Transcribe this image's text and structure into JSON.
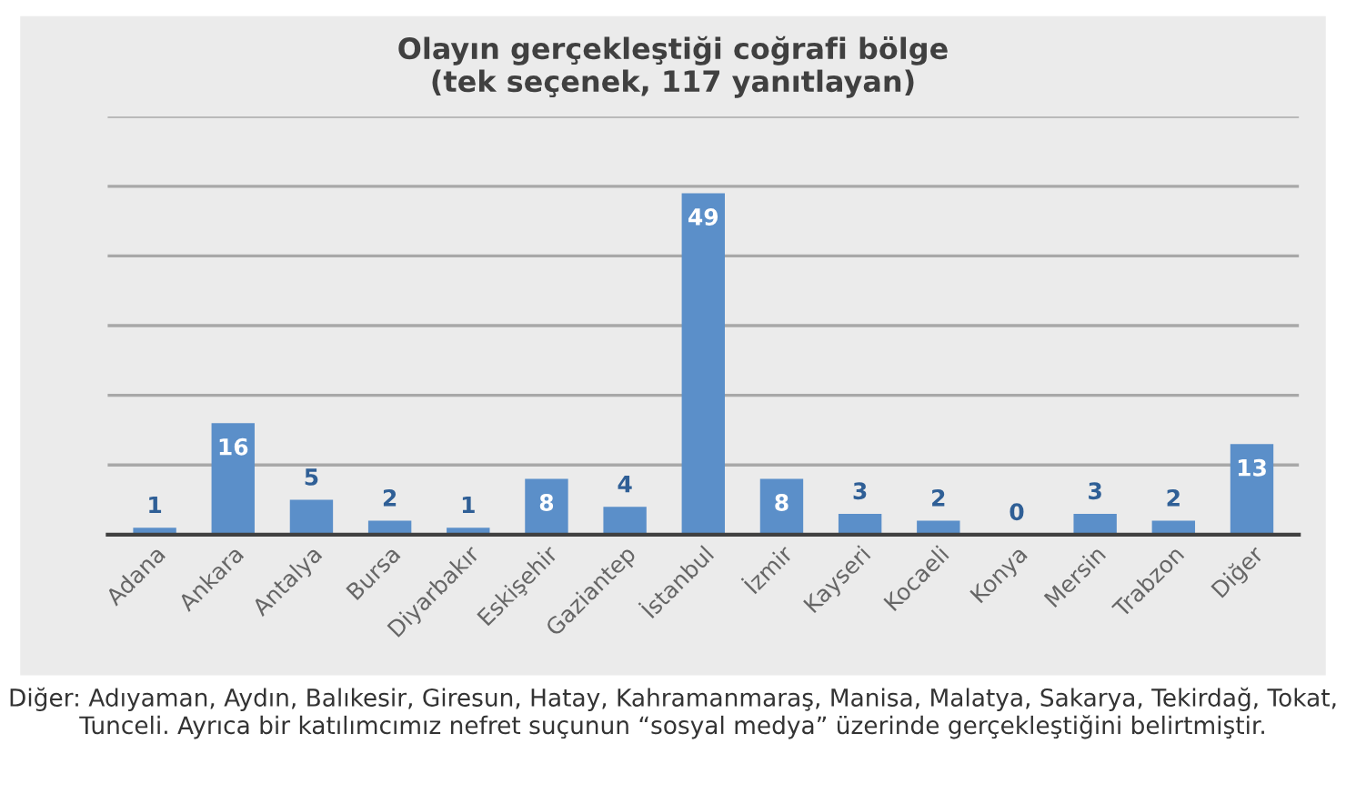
{
  "chart_data": {
    "type": "bar",
    "title": "Olayın gerçekleştiği coğrafi bölge\n(tek seçenek, 117 yanıtlayan)",
    "categories": [
      "Adana",
      "Ankara",
      "Antalya",
      "Bursa",
      "Diyarbakır",
      "Eskişehir",
      "Gaziantep",
      "İstanbul",
      "İzmir",
      "Kayseri",
      "Kocaeli",
      "Konya",
      "Mersin",
      "Trabzon",
      "Diğer"
    ],
    "values": [
      1,
      16,
      5,
      2,
      1,
      8,
      4,
      49,
      8,
      3,
      2,
      0,
      3,
      2,
      13
    ],
    "color": "#5b8fc9",
    "data_labels": true,
    "ylim": [
      0,
      60
    ],
    "yticks": [
      {
        "value": 0,
        "label": null
      },
      {
        "value": 10,
        "label": null
      },
      {
        "value": 20,
        "label": null
      },
      {
        "value": 30,
        "label": null
      },
      {
        "value": 40,
        "label": null
      },
      {
        "value": 50,
        "label": null
      },
      {
        "value": 60,
        "label": null
      }
    ],
    "grid": "y",
    "annotations": [
      "Diğer: Adıyaman, Aydın, Balıkesir, Giresun, Hatay, Kahramanmaraş, Manisa, Malatya, Sakarya, Tekirdağ, Tokat, Tunceli. Ayrıca bir katılımcımız nefret suçunun “sosyal medya” üzerinde gerçekleştiğini belirtmiştir."
    ]
  }
}
